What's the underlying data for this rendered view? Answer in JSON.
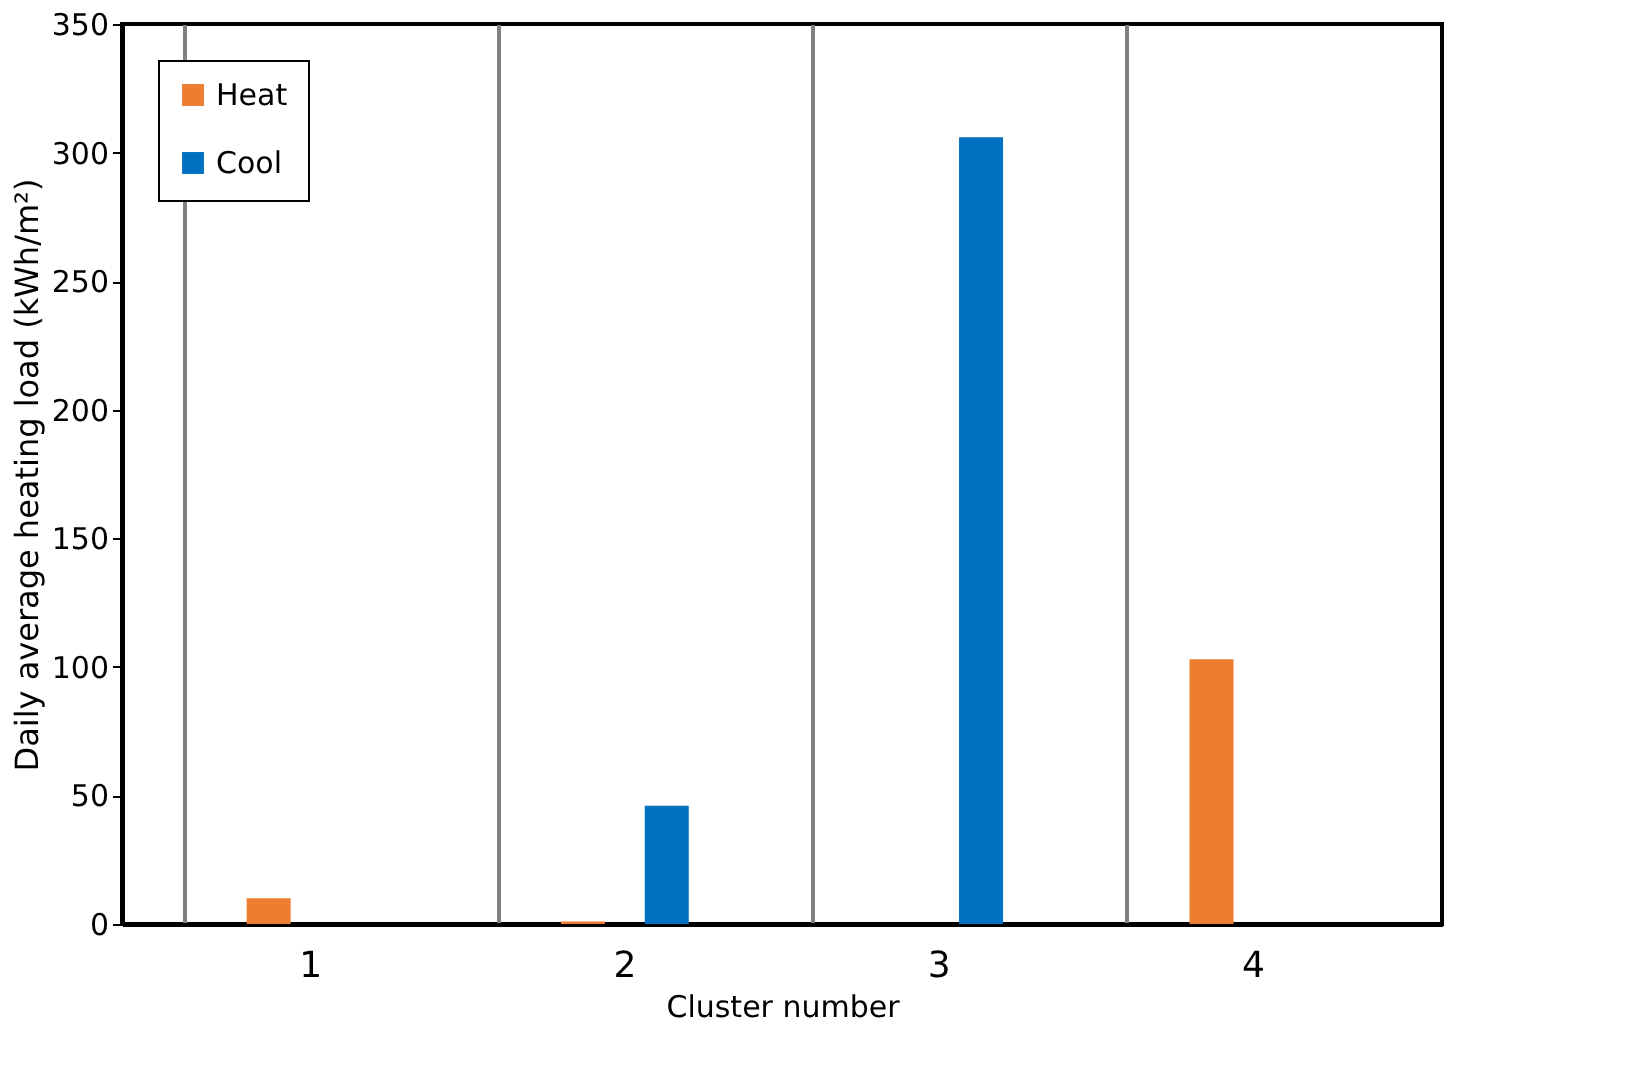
{
  "chart_data": {
    "type": "bar",
    "xlabel": "Cluster number",
    "ylabel": "Daily average heating load (kWh/m²)",
    "categories": [
      "1",
      "2",
      "3",
      "4"
    ],
    "series": [
      {
        "name": "Heat",
        "color": "#ed7d31",
        "values": [
          10,
          1,
          0,
          103
        ]
      },
      {
        "name": "Cool",
        "color": "#0070c0",
        "values": [
          0,
          46,
          306,
          0
        ]
      }
    ],
    "ylim": [
      0,
      350
    ],
    "yticks": [
      0,
      50,
      100,
      150,
      200,
      250,
      300,
      350
    ],
    "grid": "x",
    "legend": "top left"
  }
}
